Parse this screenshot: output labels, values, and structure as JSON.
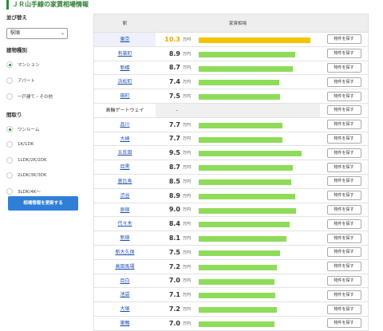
{
  "page_title": "ＪＲ山手線の家賃相場情報",
  "sidebar": {
    "sort_label": "並び替え",
    "sort_value": "駅順",
    "building_label": "建物種別",
    "building_options": [
      "マンション",
      "アパート",
      "一戸建て・その他"
    ],
    "building_selected": 0,
    "layout_label": "間取り",
    "layout_options": [
      "ワンルーム",
      "1K/1DK",
      "1LDK/2K/2DK",
      "2LDK/3K/3DK",
      "3LDK/4K〜"
    ],
    "layout_selected": 0,
    "update_button": "相場情報を更新する"
  },
  "table": {
    "col_station": "駅",
    "col_rent": "家賃相場",
    "unit": "万円",
    "find_label": "物件を探す",
    "max_value": 10.3,
    "rows": [
      {
        "station": "東京",
        "value": "10.3",
        "fraction": 1.0,
        "highlight": true,
        "link": true
      },
      {
        "station": "有楽町",
        "value": "8.9",
        "fraction": 0.864,
        "link": true
      },
      {
        "station": "新橋",
        "value": "8.7",
        "fraction": 0.845,
        "link": true
      },
      {
        "station": "浜松町",
        "value": "7.4",
        "fraction": 0.718,
        "link": true
      },
      {
        "station": "田町",
        "value": "7.5",
        "fraction": 0.728,
        "link": true
      },
      {
        "station": "高輪ゲートウェイ",
        "value": "-",
        "fraction": 0,
        "link": false
      },
      {
        "station": "品川",
        "value": "7.7",
        "fraction": 0.748,
        "link": true
      },
      {
        "station": "大崎",
        "value": "7.7",
        "fraction": 0.748,
        "link": true
      },
      {
        "station": "五反田",
        "value": "9.5",
        "fraction": 0.922,
        "link": true
      },
      {
        "station": "目黒",
        "value": "8.7",
        "fraction": 0.845,
        "link": true
      },
      {
        "station": "恵比寿",
        "value": "8.5",
        "fraction": 0.825,
        "link": true
      },
      {
        "station": "渋谷",
        "value": "8.9",
        "fraction": 0.864,
        "link": true
      },
      {
        "station": "原宿",
        "value": "9.0",
        "fraction": 0.874,
        "link": true
      },
      {
        "station": "代々木",
        "value": "8.4",
        "fraction": 0.816,
        "link": true
      },
      {
        "station": "新宿",
        "value": "8.1",
        "fraction": 0.786,
        "link": true
      },
      {
        "station": "新大久保",
        "value": "7.5",
        "fraction": 0.728,
        "link": true
      },
      {
        "station": "高田馬場",
        "value": "7.2",
        "fraction": 0.699,
        "link": true
      },
      {
        "station": "目白",
        "value": "7.0",
        "fraction": 0.68,
        "link": true
      },
      {
        "station": "池袋",
        "value": "7.1",
        "fraction": 0.689,
        "link": true
      },
      {
        "station": "大塚",
        "value": "7.2",
        "fraction": 0.699,
        "link": true
      },
      {
        "station": "巣鴨",
        "value": "7.0",
        "fraction": 0.68,
        "link": true
      }
    ]
  }
}
